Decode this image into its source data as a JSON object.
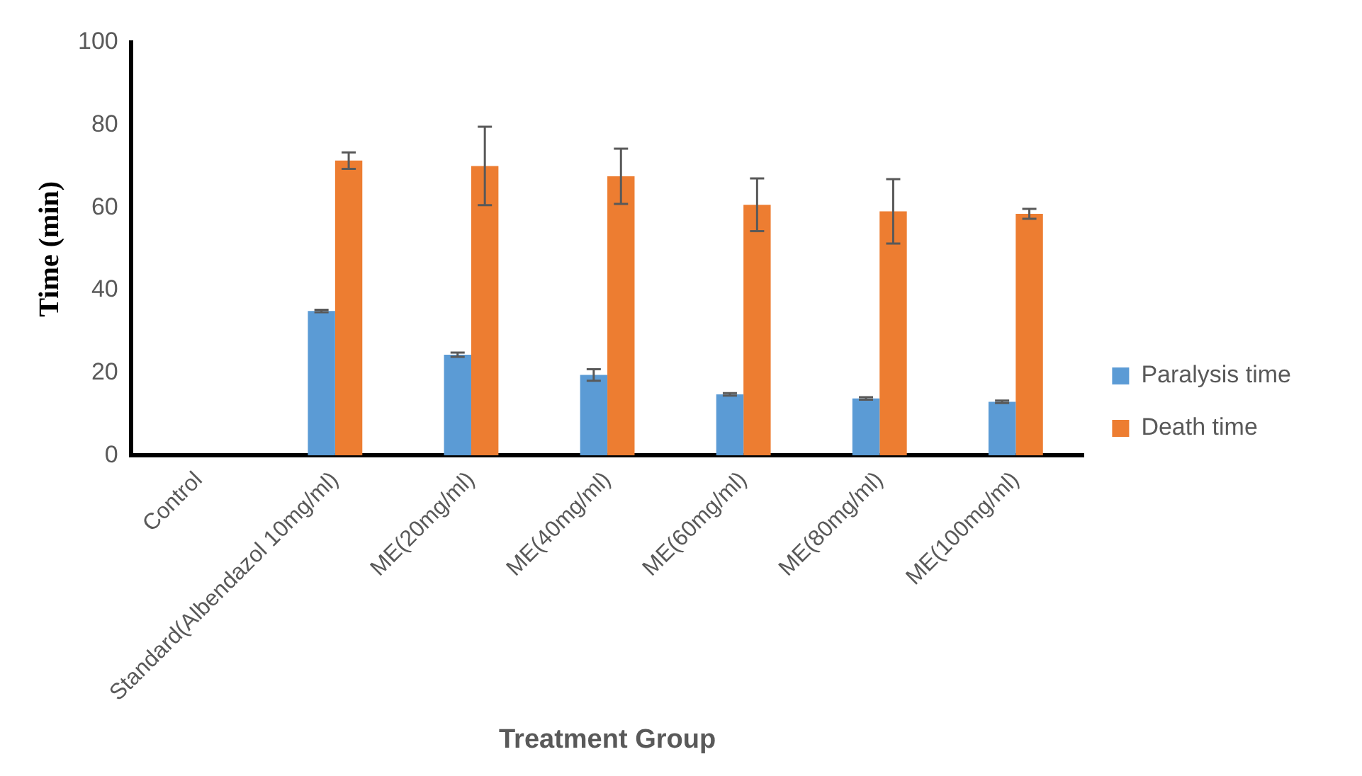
{
  "chart_data": {
    "type": "bar",
    "xlabel": "Treatment Group",
    "ylabel": "Time (min)",
    "categories": [
      "Control",
      "Standard(Albendazol 10mg/ml)",
      "ME(20mg/ml)",
      "ME(40mg/ml)",
      "ME(60mg/ml)",
      "ME(80mg/ml)",
      "ME(100mg/ml)"
    ],
    "series": [
      {
        "name": "Paralysis time",
        "color": "#5b9bd5",
        "values": [
          0,
          35,
          24.4,
          19.5,
          14.8,
          13.8,
          13
        ],
        "errors": [
          null,
          0.3,
          0.5,
          1.4,
          0.3,
          0.3,
          0.3
        ]
      },
      {
        "name": "Death time",
        "color": "#ed7d31",
        "values": [
          0,
          71.4,
          70.1,
          67.6,
          60.7,
          59.1,
          58.5
        ],
        "errors": [
          null,
          2,
          9.5,
          6.7,
          6.4,
          7.8,
          1.2
        ]
      }
    ],
    "ylim": [
      0,
      100
    ],
    "yticks": [
      0,
      20,
      40,
      60,
      80,
      100
    ],
    "grid": false,
    "legend": "right"
  }
}
